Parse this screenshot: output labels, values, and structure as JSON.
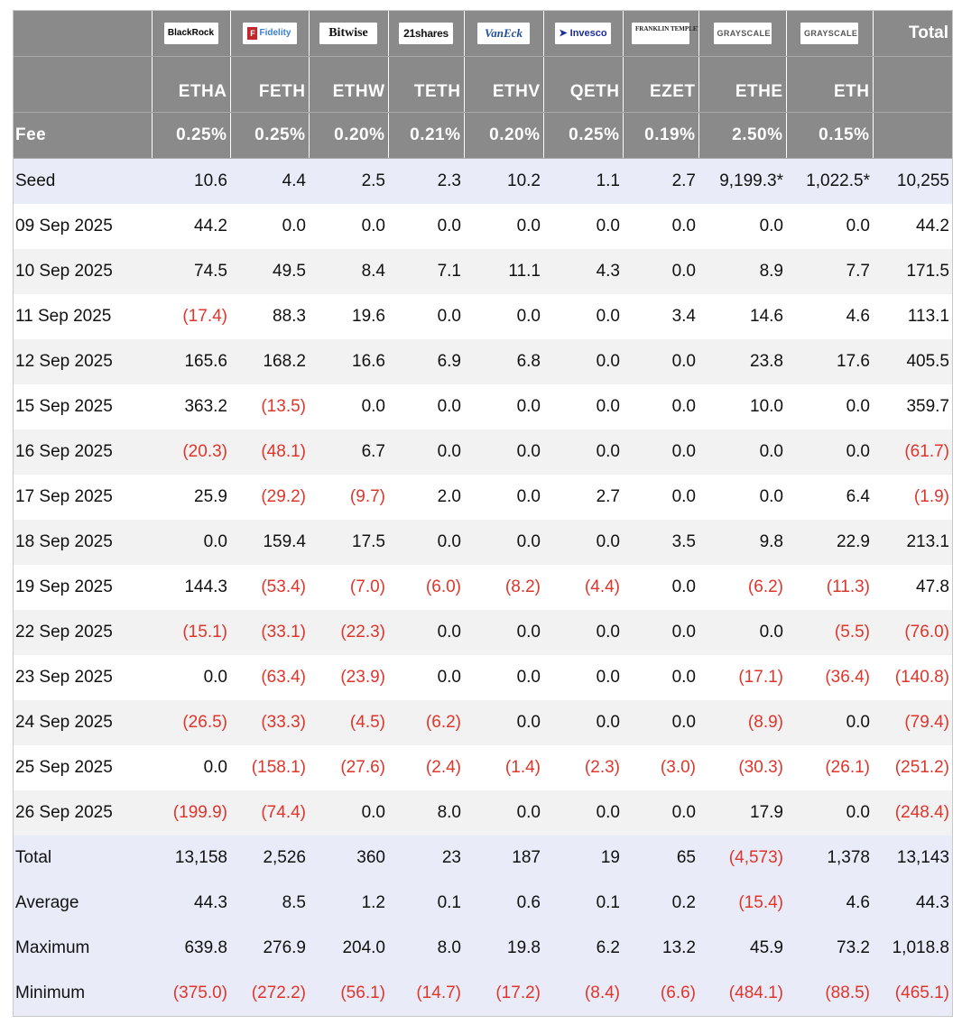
{
  "header": {
    "total_label": "Total",
    "fee_label": "Fee",
    "issuers": [
      {
        "logo_icon": "blackrock-logo",
        "logo_text": "BlackRock",
        "ticker": "ETHA",
        "fee": "0.25%"
      },
      {
        "logo_icon": "fidelity-logo",
        "logo_text": "Fidelity",
        "ticker": "FETH",
        "fee": "0.25%"
      },
      {
        "logo_icon": "bitwise-logo",
        "logo_text": "Bitwise",
        "ticker": "ETHW",
        "fee": "0.20%"
      },
      {
        "logo_icon": "21shares-logo",
        "logo_text": "21shares",
        "ticker": "TETH",
        "fee": "0.21%"
      },
      {
        "logo_icon": "vaneck-logo",
        "logo_text": "VanEck",
        "ticker": "ETHV",
        "fee": "0.20%"
      },
      {
        "logo_icon": "invesco-logo",
        "logo_text": "Invesco",
        "ticker": "QETH",
        "fee": "0.25%"
      },
      {
        "logo_icon": "franklin-templeton-logo",
        "logo_text": "FRANKLIN TEMPLETON",
        "ticker": "EZET",
        "fee": "0.19%"
      },
      {
        "logo_icon": "grayscale-logo",
        "logo_text": "GRAYSCALE",
        "ticker": "ETHE",
        "fee": "2.50%"
      },
      {
        "logo_icon": "grayscale-logo",
        "logo_text": "GRAYSCALE",
        "ticker": "ETH",
        "fee": "0.15%"
      }
    ]
  },
  "rows": [
    {
      "label": "Seed",
      "values": [
        "10.6",
        "4.4",
        "2.5",
        "2.3",
        "10.2",
        "1.1",
        "2.7",
        "9,199.3*",
        "1,022.5*",
        "10,255"
      ]
    },
    {
      "label": "09 Sep 2025",
      "values": [
        "44.2",
        "0.0",
        "0.0",
        "0.0",
        "0.0",
        "0.0",
        "0.0",
        "0.0",
        "0.0",
        "44.2"
      ]
    },
    {
      "label": "10 Sep 2025",
      "values": [
        "74.5",
        "49.5",
        "8.4",
        "7.1",
        "11.1",
        "4.3",
        "0.0",
        "8.9",
        "7.7",
        "171.5"
      ]
    },
    {
      "label": "11 Sep 2025",
      "values": [
        "(17.4)",
        "88.3",
        "19.6",
        "0.0",
        "0.0",
        "0.0",
        "3.4",
        "14.6",
        "4.6",
        "113.1"
      ]
    },
    {
      "label": "12 Sep 2025",
      "values": [
        "165.6",
        "168.2",
        "16.6",
        "6.9",
        "6.8",
        "0.0",
        "0.0",
        "23.8",
        "17.6",
        "405.5"
      ]
    },
    {
      "label": "15 Sep 2025",
      "values": [
        "363.2",
        "(13.5)",
        "0.0",
        "0.0",
        "0.0",
        "0.0",
        "0.0",
        "10.0",
        "0.0",
        "359.7"
      ]
    },
    {
      "label": "16 Sep 2025",
      "values": [
        "(20.3)",
        "(48.1)",
        "6.7",
        "0.0",
        "0.0",
        "0.0",
        "0.0",
        "0.0",
        "0.0",
        "(61.7)"
      ]
    },
    {
      "label": "17 Sep 2025",
      "values": [
        "25.9",
        "(29.2)",
        "(9.7)",
        "2.0",
        "0.0",
        "2.7",
        "0.0",
        "0.0",
        "6.4",
        "(1.9)"
      ]
    },
    {
      "label": "18 Sep 2025",
      "values": [
        "0.0",
        "159.4",
        "17.5",
        "0.0",
        "0.0",
        "0.0",
        "3.5",
        "9.8",
        "22.9",
        "213.1"
      ]
    },
    {
      "label": "19 Sep 2025",
      "values": [
        "144.3",
        "(53.4)",
        "(7.0)",
        "(6.0)",
        "(8.2)",
        "(4.4)",
        "0.0",
        "(6.2)",
        "(11.3)",
        "47.8"
      ]
    },
    {
      "label": "22 Sep 2025",
      "values": [
        "(15.1)",
        "(33.1)",
        "(22.3)",
        "0.0",
        "0.0",
        "0.0",
        "0.0",
        "0.0",
        "(5.5)",
        "(76.0)"
      ]
    },
    {
      "label": "23 Sep 2025",
      "values": [
        "0.0",
        "(63.4)",
        "(23.9)",
        "0.0",
        "0.0",
        "0.0",
        "0.0",
        "(17.1)",
        "(36.4)",
        "(140.8)"
      ]
    },
    {
      "label": "24 Sep 2025",
      "values": [
        "(26.5)",
        "(33.3)",
        "(4.5)",
        "(6.2)",
        "0.0",
        "0.0",
        "0.0",
        "(8.9)",
        "0.0",
        "(79.4)"
      ]
    },
    {
      "label": "25 Sep 2025",
      "values": [
        "0.0",
        "(158.1)",
        "(27.6)",
        "(2.4)",
        "(1.4)",
        "(2.3)",
        "(3.0)",
        "(30.3)",
        "(26.1)",
        "(251.2)"
      ]
    },
    {
      "label": "26 Sep 2025",
      "values": [
        "(199.9)",
        "(74.4)",
        "0.0",
        "8.0",
        "0.0",
        "0.0",
        "0.0",
        "17.9",
        "0.0",
        "(248.4)"
      ]
    }
  ],
  "summary": [
    {
      "label": "Total",
      "values": [
        "13,158",
        "2,526",
        "360",
        "23",
        "187",
        "19",
        "65",
        "(4,573)",
        "1,378",
        "13,143"
      ]
    },
    {
      "label": "Average",
      "values": [
        "44.3",
        "8.5",
        "1.2",
        "0.1",
        "0.6",
        "0.1",
        "0.2",
        "(15.4)",
        "4.6",
        "44.3"
      ]
    },
    {
      "label": "Maximum",
      "values": [
        "639.8",
        "276.9",
        "204.0",
        "8.0",
        "19.8",
        "6.2",
        "13.2",
        "45.9",
        "73.2",
        "1,018.8"
      ]
    },
    {
      "label": "Minimum",
      "values": [
        "(375.0)",
        "(272.2)",
        "(56.1)",
        "(14.7)",
        "(17.2)",
        "(8.4)",
        "(6.6)",
        "(484.1)",
        "(88.5)",
        "(465.1)"
      ]
    }
  ],
  "colors": {
    "header_bg": "#8a8a8a",
    "negative": "#e0352b",
    "stripe": "#f2f2f2",
    "summary_bg": "#e9ecf8"
  }
}
